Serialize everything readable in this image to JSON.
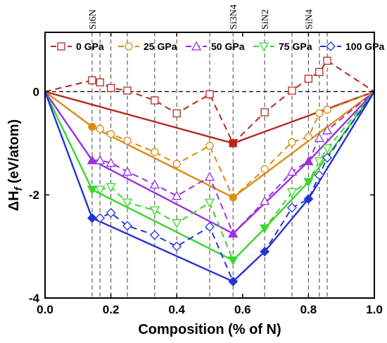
{
  "chart_data": {
    "type": "line",
    "xlabel": "Composition  (% of N)",
    "ylabel": "ΔH_f (eV/atom)",
    "xlim": [
      0,
      1
    ],
    "ylim": [
      -4,
      1.15
    ],
    "x_ticks": [
      "0.0",
      "0.2",
      "0.4",
      "0.6",
      "0.8",
      "1.0"
    ],
    "y_ticks": [
      "0",
      "-2",
      "-4"
    ],
    "legend_position": "top",
    "phase_labels": [
      {
        "text": "Si6N",
        "x": 0.143
      },
      {
        "text": "Si3N4",
        "x": 0.571
      },
      {
        "text": "SiN2",
        "x": 0.667
      },
      {
        "text": "SiN4",
        "x": 0.8
      }
    ],
    "vertical_guides": [
      0.143,
      0.167,
      0.2,
      0.25,
      0.333,
      0.4,
      0.5,
      0.571,
      0.667,
      0.75,
      0.8,
      0.833,
      0.857
    ],
    "series": [
      {
        "name": "0 GPa",
        "color": "#b5291f",
        "marker": "square",
        "points": [
          [
            0,
            0
          ],
          [
            0.143,
            0.22
          ],
          [
            0.167,
            0.18
          ],
          [
            0.2,
            0.07
          ],
          [
            0.25,
            0.02
          ],
          [
            0.333,
            -0.17
          ],
          [
            0.4,
            -0.42
          ],
          [
            0.5,
            -0.05
          ],
          [
            0.571,
            -1.0
          ],
          [
            0.667,
            -0.4
          ],
          [
            0.75,
            0.02
          ],
          [
            0.8,
            0.25
          ],
          [
            0.833,
            0.38
          ],
          [
            0.857,
            0.6
          ],
          [
            1,
            0
          ]
        ],
        "hull": [
          [
            0,
            0
          ],
          [
            0.571,
            -1.0
          ],
          [
            1,
            0
          ]
        ]
      },
      {
        "name": "25 GPa",
        "color": "#dc8c12",
        "marker": "circle",
        "points": [
          [
            0,
            0
          ],
          [
            0.143,
            -0.68
          ],
          [
            0.167,
            -0.72
          ],
          [
            0.2,
            -0.82
          ],
          [
            0.25,
            -0.95
          ],
          [
            0.333,
            -1.17
          ],
          [
            0.4,
            -1.4
          ],
          [
            0.5,
            -1.05
          ],
          [
            0.571,
            -2.05
          ],
          [
            0.667,
            -1.5
          ],
          [
            0.75,
            -0.98
          ],
          [
            0.8,
            -0.88
          ],
          [
            0.833,
            -0.42
          ],
          [
            0.857,
            -0.35
          ],
          [
            1,
            0
          ]
        ],
        "hull": [
          [
            0,
            0
          ],
          [
            0.143,
            -0.68
          ],
          [
            0.571,
            -2.05
          ],
          [
            1,
            0
          ]
        ]
      },
      {
        "name": "50 GPa",
        "color": "#9a30e0",
        "marker": "triangle",
        "points": [
          [
            0,
            0
          ],
          [
            0.143,
            -1.33
          ],
          [
            0.167,
            -1.33
          ],
          [
            0.2,
            -1.38
          ],
          [
            0.25,
            -1.55
          ],
          [
            0.333,
            -1.8
          ],
          [
            0.4,
            -2.02
          ],
          [
            0.5,
            -1.65
          ],
          [
            0.571,
            -2.75
          ],
          [
            0.667,
            -2.12
          ],
          [
            0.75,
            -1.55
          ],
          [
            0.8,
            -1.35
          ],
          [
            0.833,
            -0.9
          ],
          [
            0.857,
            -0.75
          ],
          [
            1,
            0
          ]
        ],
        "hull": [
          [
            0,
            0
          ],
          [
            0.143,
            -1.33
          ],
          [
            0.571,
            -2.75
          ],
          [
            0.8,
            -1.35
          ],
          [
            1,
            0
          ]
        ]
      },
      {
        "name": "75 GPa",
        "color": "#3ad62e",
        "marker": "triangle-down",
        "points": [
          [
            0,
            0
          ],
          [
            0.143,
            -1.9
          ],
          [
            0.167,
            -1.9
          ],
          [
            0.2,
            -1.85
          ],
          [
            0.25,
            -2.15
          ],
          [
            0.333,
            -2.3
          ],
          [
            0.4,
            -2.55
          ],
          [
            0.5,
            -2.15
          ],
          [
            0.571,
            -3.27
          ],
          [
            0.667,
            -2.65
          ],
          [
            0.75,
            -1.95
          ],
          [
            0.8,
            -1.75
          ],
          [
            0.833,
            -1.35
          ],
          [
            0.857,
            -1.1
          ],
          [
            1,
            0
          ]
        ],
        "hull": [
          [
            0,
            0
          ],
          [
            0.143,
            -1.9
          ],
          [
            0.571,
            -3.27
          ],
          [
            0.667,
            -2.65
          ],
          [
            0.8,
            -1.75
          ],
          [
            1,
            0
          ]
        ]
      },
      {
        "name": "100 GPa",
        "color": "#2534d4",
        "marker": "diamond",
        "points": [
          [
            0,
            0
          ],
          [
            0.143,
            -2.45
          ],
          [
            0.167,
            -2.45
          ],
          [
            0.2,
            -2.35
          ],
          [
            0.25,
            -2.6
          ],
          [
            0.333,
            -2.78
          ],
          [
            0.4,
            -3.0
          ],
          [
            0.5,
            -2.62
          ],
          [
            0.571,
            -3.68
          ],
          [
            0.667,
            -3.1
          ],
          [
            0.75,
            -2.25
          ],
          [
            0.8,
            -2.08
          ],
          [
            0.833,
            -1.62
          ],
          [
            0.857,
            -1.28
          ],
          [
            1,
            0
          ]
        ],
        "hull": [
          [
            0,
            0
          ],
          [
            0.143,
            -2.45
          ],
          [
            0.571,
            -3.68
          ],
          [
            0.667,
            -3.1
          ],
          [
            0.8,
            -2.08
          ],
          [
            1,
            0
          ]
        ]
      }
    ]
  }
}
